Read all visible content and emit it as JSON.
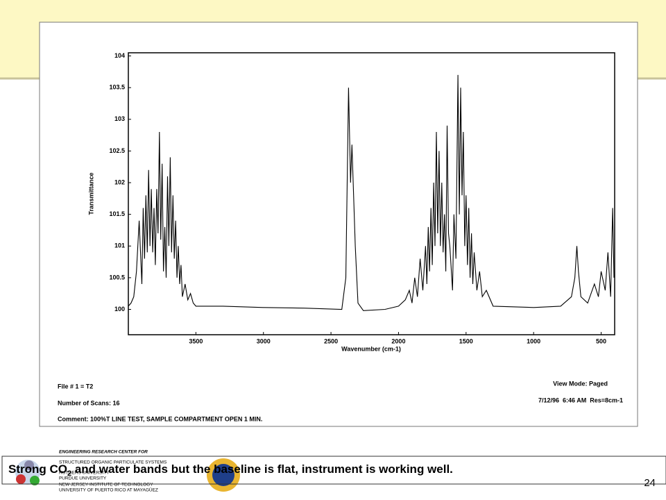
{
  "chart_data": {
    "type": "line",
    "ylabel": "Transmittance",
    "xlabel": "Wavenumber (cm-1)",
    "xlim": [
      4000,
      400
    ],
    "ylim": [
      99.6,
      104.05
    ],
    "xticks": [
      3500,
      3000,
      2500,
      2000,
      1500,
      1000,
      500
    ],
    "yticks": [
      100,
      100.5,
      101,
      101.5,
      102,
      102.5,
      103,
      103.5,
      104
    ],
    "color": "#000000",
    "x": [
      4000,
      3980,
      3960,
      3940,
      3920,
      3900,
      3890,
      3880,
      3870,
      3860,
      3850,
      3840,
      3830,
      3820,
      3810,
      3800,
      3790,
      3780,
      3770,
      3760,
      3750,
      3740,
      3730,
      3720,
      3710,
      3700,
      3690,
      3680,
      3670,
      3660,
      3650,
      3640,
      3630,
      3620,
      3610,
      3600,
      3580,
      3560,
      3540,
      3520,
      3500,
      3300,
      3000,
      2700,
      2420,
      2390,
      2370,
      2355,
      2345,
      2320,
      2300,
      2260,
      2100,
      2000,
      1950,
      1920,
      1900,
      1880,
      1860,
      1840,
      1820,
      1800,
      1790,
      1780,
      1770,
      1760,
      1750,
      1740,
      1730,
      1720,
      1710,
      1700,
      1690,
      1680,
      1670,
      1660,
      1650,
      1640,
      1630,
      1620,
      1600,
      1590,
      1575,
      1560,
      1550,
      1540,
      1530,
      1520,
      1510,
      1500,
      1490,
      1480,
      1470,
      1460,
      1450,
      1440,
      1420,
      1400,
      1380,
      1350,
      1300,
      1000,
      800,
      720,
      695,
      680,
      668,
      650,
      600,
      550,
      520,
      500,
      470,
      450,
      430,
      415,
      405
    ],
    "values": [
      100.05,
      100.1,
      100.2,
      100.6,
      101.4,
      100.4,
      101.6,
      100.8,
      101.8,
      100.9,
      102.2,
      101.0,
      101.9,
      100.9,
      101.6,
      100.7,
      101.9,
      101.2,
      102.8,
      101.1,
      102.3,
      100.6,
      101.3,
      100.5,
      102.1,
      101.0,
      102.4,
      100.9,
      101.8,
      100.8,
      101.4,
      100.5,
      101.0,
      100.4,
      100.7,
      100.2,
      100.4,
      100.15,
      100.25,
      100.1,
      100.05,
      100.05,
      100.03,
      100.02,
      100.0,
      100.5,
      103.5,
      102.0,
      102.6,
      101.0,
      100.1,
      99.98,
      100.0,
      100.05,
      100.15,
      100.3,
      100.1,
      100.5,
      100.2,
      100.8,
      100.3,
      101.0,
      100.4,
      101.3,
      100.6,
      101.6,
      100.7,
      102.0,
      101.0,
      102.8,
      101.2,
      102.5,
      101.0,
      102.0,
      100.9,
      101.5,
      100.6,
      102.9,
      101.2,
      101.0,
      100.3,
      101.5,
      100.8,
      103.7,
      101.5,
      103.5,
      101.8,
      102.8,
      101.0,
      101.8,
      100.7,
      101.6,
      100.5,
      101.2,
      100.4,
      100.9,
      100.3,
      100.6,
      100.2,
      100.3,
      100.05,
      100.03,
      100.05,
      100.2,
      100.5,
      101.0,
      100.6,
      100.2,
      100.1,
      100.4,
      100.2,
      100.6,
      100.3,
      100.9,
      100.2,
      101.6,
      100.5
    ]
  },
  "footer": {
    "file": "File # 1 = T2",
    "scans": "Number of Scans: 16",
    "comment": "Comment: 100%T LINE TEST, SAMPLE COMPARTMENT OPEN 1 MIN.",
    "view": "View Mode: Paged",
    "date": "7/12/96  6:46 AM  Res=8cm-1"
  },
  "caption": {
    "before": "Strong CO",
    "sub": "2",
    "after": " and water bands but the baseline is flat, instrument is working well."
  },
  "page": "24",
  "logo": {
    "line1": "ENGINEERING RESEARCH CENTER FOR",
    "line2": "STRUCTURED ORGANIC PARTICULATE SYSTEMS",
    "line3": "RUTGERS UNIVERSITY",
    "line4": "PURDUE UNIVERSITY",
    "line5": "NEW JERSEY INSTITUTE OF TECHNOLOGY",
    "line6": "UNIVERSITY OF PUERTO RICO AT MAYAGÜEZ"
  }
}
